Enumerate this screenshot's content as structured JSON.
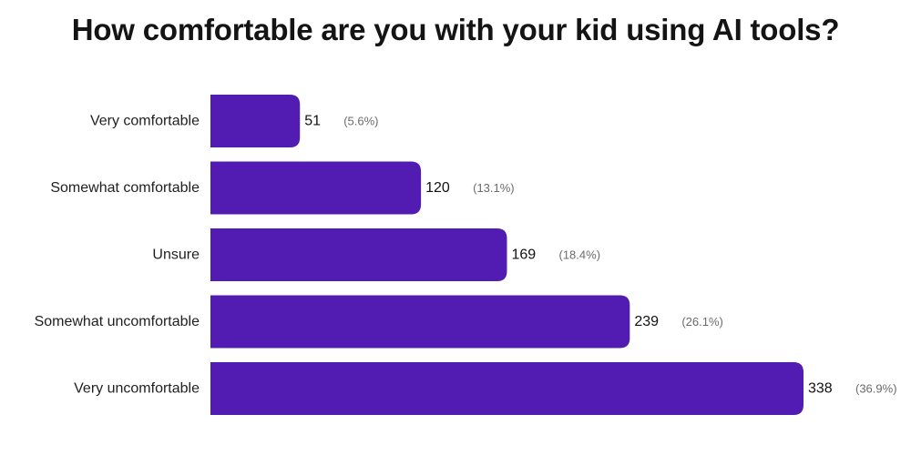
{
  "colors": {
    "bar": "#521CB2",
    "title": "#141414",
    "percent_text": "#6b6b6b"
  },
  "chart_data": {
    "type": "bar",
    "orientation": "horizontal",
    "title": "How comfortable are you with your kid using AI tools?",
    "xlabel": "",
    "ylabel": "",
    "grid": false,
    "legend": "none",
    "categories": [
      "Very comfortable",
      "Somewhat comfortable",
      "Unsure",
      "Somewhat uncomfortable",
      "Very uncomfortable"
    ],
    "values": [
      51,
      120,
      169,
      239,
      338
    ],
    "percent_labels": [
      "(5.6%)",
      "(13.1%)",
      "(18.4%)",
      "(26.1%)",
      "(36.9%)"
    ],
    "xlim": [
      0,
      338
    ]
  }
}
